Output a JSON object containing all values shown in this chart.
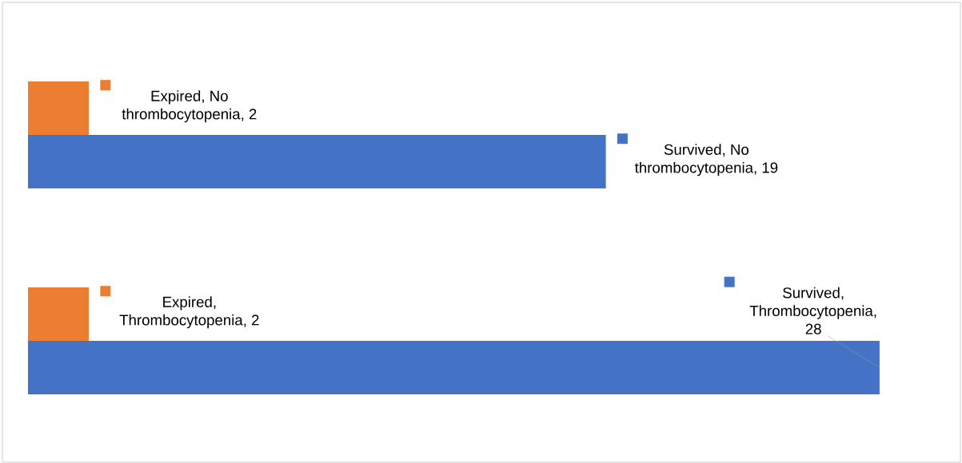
{
  "chart_data": {
    "type": "bar",
    "orientation": "horizontal",
    "categories": [
      null,
      null
    ],
    "xlim": [
      0,
      30.5
    ],
    "series": [
      {
        "color": "#4472c4",
        "values": [
          19,
          28
        ],
        "value_labels": [
          "Survived, No thrombocytopenia, 19",
          "Survived, Thrombocytopenia, 28"
        ]
      },
      {
        "color": "#ed7d31",
        "values": [
          2,
          2
        ],
        "value_labels": [
          "Expired, No thrombocytopenia, 2",
          "Expired, Thrombocytopenia, 2"
        ]
      }
    ]
  }
}
